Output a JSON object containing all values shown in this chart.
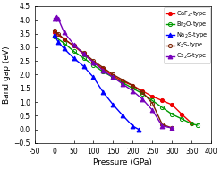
{
  "xlabel": "Pressure (GPa)",
  "ylabel": "Band gap (eV)",
  "xlim": [
    -50,
    400
  ],
  "ylim": [
    -0.5,
    4.5
  ],
  "xticks": [
    -50,
    0,
    50,
    100,
    150,
    200,
    250,
    300,
    350,
    400
  ],
  "xtick_labels": [
    "-50",
    "0",
    "50",
    "100",
    "150",
    "200",
    "250",
    "300",
    "350",
    "400"
  ],
  "yticks": [
    -0.5,
    0.0,
    0.5,
    1.0,
    1.5,
    2.0,
    2.5,
    3.0,
    3.5,
    4.0,
    4.5
  ],
  "ytick_labels": [
    "-0.5",
    "0.0",
    "0.5",
    "1.0",
    "1.5",
    "2.0",
    "2.5",
    "3.0",
    "3.5",
    "4.0",
    "4.5"
  ],
  "series": [
    {
      "label": "CaF$_2$-type",
      "color": "#ee0000",
      "marker": "o",
      "markerfacecolor": "#ee0000",
      "markeredgecolor": "#ee0000",
      "markersize": 3.0,
      "linewidth": 1.0,
      "x": [
        0,
        25,
        50,
        75,
        100,
        125,
        150,
        175,
        200,
        225,
        250,
        275,
        300,
        325,
        350
      ],
      "y": [
        3.55,
        3.3,
        3.05,
        2.75,
        2.45,
        2.2,
        1.95,
        1.75,
        1.6,
        1.4,
        1.2,
        1.05,
        0.9,
        0.55,
        0.22
      ]
    },
    {
      "label": "Br$_2$O-type",
      "color": "#009900",
      "marker": "o",
      "markerfacecolor": "none",
      "markeredgecolor": "#009900",
      "markersize": 3.0,
      "linewidth": 1.0,
      "x": [
        0,
        25,
        50,
        75,
        100,
        125,
        150,
        175,
        200,
        225,
        250,
        275,
        300,
        325,
        350,
        365
      ],
      "y": [
        3.4,
        3.15,
        2.85,
        2.6,
        2.35,
        2.1,
        1.9,
        1.7,
        1.5,
        1.3,
        1.05,
        0.8,
        0.55,
        0.38,
        0.2,
        0.15
      ]
    },
    {
      "label": "Na$_2$S-type",
      "color": "#0000ff",
      "marker": "^",
      "markerfacecolor": "#0000ff",
      "markeredgecolor": "#0000ff",
      "markersize": 3.5,
      "linewidth": 1.0,
      "x": [
        0,
        10,
        25,
        50,
        75,
        100,
        125,
        150,
        175,
        200,
        215
      ],
      "y": [
        3.45,
        3.2,
        2.95,
        2.6,
        2.3,
        1.9,
        1.35,
        0.9,
        0.5,
        0.12,
        0.0
      ]
    },
    {
      "label": "K$_2$S-type",
      "color": "#7B2000",
      "marker": "o",
      "markerfacecolor": "none",
      "markeredgecolor": "#7B2000",
      "markersize": 3.0,
      "linewidth": 1.0,
      "x": [
        0,
        10,
        25,
        50,
        75,
        100,
        125,
        150,
        175,
        200,
        225,
        250,
        275,
        300
      ],
      "y": [
        3.6,
        3.5,
        3.3,
        3.05,
        2.8,
        2.5,
        2.25,
        2.0,
        1.8,
        1.6,
        1.35,
        0.95,
        0.18,
        0.05
      ]
    },
    {
      "label": "Cs$_2$S-type",
      "color": "#7700bb",
      "marker": "^",
      "markerfacecolor": "#7700bb",
      "markeredgecolor": "#7700bb",
      "markersize": 3.5,
      "linewidth": 1.0,
      "x": [
        0,
        5,
        10,
        25,
        50,
        75,
        100,
        125,
        150,
        175,
        200,
        225,
        250,
        275,
        300
      ],
      "y": [
        4.05,
        4.1,
        4.05,
        3.55,
        3.1,
        2.75,
        2.45,
        2.15,
        1.9,
        1.65,
        1.4,
        1.1,
        0.7,
        0.12,
        0.05
      ]
    }
  ]
}
